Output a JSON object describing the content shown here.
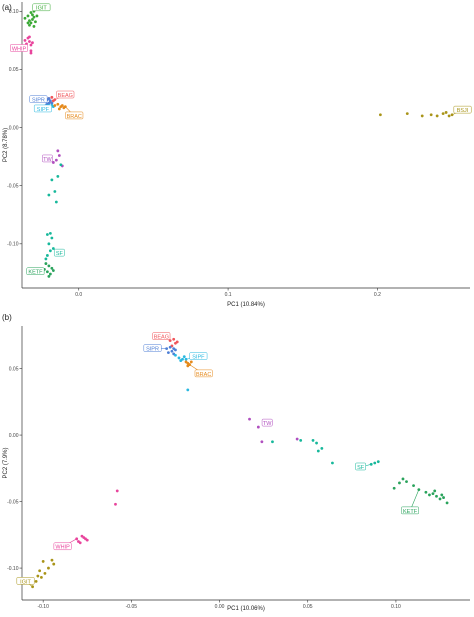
{
  "chart_data": [
    {
      "type": "scatter",
      "panel_label": "(a)",
      "xlabel": "PC1 (10.84%)",
      "ylabel": "PC2 (8.78%)",
      "xlim": [
        -0.038,
        0.262
      ],
      "ylim": [
        -0.138,
        0.108
      ],
      "xticks": [
        0.0,
        0.1,
        0.2
      ],
      "xtick_labels": [
        "0.0",
        "0.1",
        "0.2"
      ],
      "yticks": [
        -0.1,
        -0.05,
        0.0,
        0.05,
        0.1
      ],
      "ytick_labels": [
        "-0.10",
        "-0.05",
        "0.00",
        "0.05",
        "0.10"
      ],
      "grid": false,
      "groups": [
        {
          "name": "IGIT",
          "color": "#3aa935",
          "label_at": [
            -0.025,
            0.103
          ],
          "points": [
            [
              -0.036,
              0.094
            ],
            [
              -0.034,
              0.096
            ],
            [
              -0.033,
              0.092
            ],
            [
              -0.032,
              0.09
            ],
            [
              -0.031,
              0.097
            ],
            [
              -0.03,
              0.095
            ],
            [
              -0.033,
              0.088
            ],
            [
              -0.03,
              0.1
            ],
            [
              -0.029,
              0.091
            ],
            [
              -0.034,
              0.09
            ],
            [
              -0.031,
              0.093
            ],
            [
              -0.028,
              0.096
            ],
            [
              -0.032,
              0.099
            ],
            [
              -0.03,
              0.087
            ]
          ]
        },
        {
          "name": "WHIP",
          "color": "#e8449c",
          "label_at": [
            -0.04,
            0.068
          ],
          "points": [
            [
              -0.036,
              0.075
            ],
            [
              -0.035,
              0.072
            ],
            [
              -0.033,
              0.074
            ],
            [
              -0.034,
              0.077
            ],
            [
              -0.032,
              0.071
            ],
            [
              -0.033,
              0.078
            ],
            [
              -0.036,
              0.07
            ],
            [
              -0.031,
              0.073
            ],
            [
              -0.032,
              0.064
            ],
            [
              -0.032,
              0.066
            ]
          ]
        },
        {
          "name": "BEAG",
          "color": "#f0555a",
          "label_at": [
            -0.009,
            0.028
          ],
          "points": [
            [
              -0.02,
              0.025
            ],
            [
              -0.018,
              0.026
            ],
            [
              -0.017,
              0.023
            ],
            [
              -0.019,
              0.022
            ],
            [
              -0.016,
              0.024
            ]
          ]
        },
        {
          "name": "SIPR",
          "color": "#4e7fd6",
          "label_at": [
            -0.027,
            0.024
          ],
          "points": [
            [
              -0.022,
              0.022
            ],
            [
              -0.021,
              0.024
            ],
            [
              -0.02,
              0.021
            ],
            [
              -0.019,
              0.023
            ],
            [
              -0.021,
              0.02
            ],
            [
              -0.018,
              0.021
            ],
            [
              -0.02,
              0.025
            ],
            [
              -0.022,
              0.019
            ]
          ]
        },
        {
          "name": "SIPF",
          "color": "#29b8e0",
          "label_at": [
            -0.024,
            0.016
          ],
          "points": [
            [
              -0.021,
              0.018
            ],
            [
              -0.02,
              0.019
            ],
            [
              -0.019,
              0.017
            ],
            [
              -0.018,
              0.019
            ],
            [
              -0.017,
              0.018
            ],
            [
              -0.02,
              0.016
            ]
          ]
        },
        {
          "name": "BRAC",
          "color": "#e58a1c",
          "label_at": [
            -0.003,
            0.01
          ],
          "points": [
            [
              -0.016,
              0.019
            ],
            [
              -0.014,
              0.02
            ],
            [
              -0.012,
              0.018
            ],
            [
              -0.01,
              0.017
            ],
            [
              -0.011,
              0.019
            ],
            [
              -0.013,
              0.016
            ],
            [
              -0.009,
              0.018
            ]
          ]
        },
        {
          "name": "BSJI",
          "color": "#a99418",
          "label_at": [
            0.257,
            0.015
          ],
          "points": [
            [
              0.202,
              0.011
            ],
            [
              0.22,
              0.012
            ],
            [
              0.23,
              0.01
            ],
            [
              0.236,
              0.011
            ],
            [
              0.24,
              0.01
            ],
            [
              0.244,
              0.012
            ],
            [
              0.248,
              0.01
            ],
            [
              0.25,
              0.011
            ],
            [
              0.246,
              0.013
            ]
          ]
        },
        {
          "name": "TW",
          "color": "#b04fbf",
          "label_at": [
            -0.021,
            -0.027
          ],
          "points": [
            [
              -0.014,
              -0.02
            ],
            [
              -0.013,
              -0.024
            ],
            [
              -0.017,
              -0.03
            ],
            [
              -0.011,
              -0.033
            ],
            [
              -0.015,
              -0.028
            ]
          ]
        },
        {
          "name": "SF",
          "color": "#17b89b",
          "label_at": [
            -0.013,
            -0.108
          ],
          "points": [
            [
              -0.012,
              -0.032
            ],
            [
              -0.018,
              -0.045
            ],
            [
              -0.014,
              -0.042
            ],
            [
              -0.02,
              -0.058
            ],
            [
              -0.016,
              -0.055
            ],
            [
              -0.015,
              -0.064
            ],
            [
              -0.019,
              -0.091
            ],
            [
              -0.021,
              -0.092
            ],
            [
              -0.018,
              -0.095
            ],
            [
              -0.02,
              -0.1
            ],
            [
              -0.017,
              -0.104
            ],
            [
              -0.019,
              -0.106
            ],
            [
              -0.021,
              -0.11
            ],
            [
              -0.022,
              -0.113
            ]
          ]
        },
        {
          "name": "KETF",
          "color": "#2aa35c",
          "label_at": [
            -0.029,
            -0.124
          ],
          "points": [
            [
              -0.022,
              -0.117
            ],
            [
              -0.02,
              -0.119
            ],
            [
              -0.018,
              -0.121
            ],
            [
              -0.021,
              -0.124
            ],
            [
              -0.019,
              -0.126
            ],
            [
              -0.017,
              -0.123
            ],
            [
              -0.023,
              -0.122
            ],
            [
              -0.02,
              -0.128
            ]
          ]
        }
      ]
    },
    {
      "type": "scatter",
      "panel_label": "(b)",
      "xlabel": "PC1 (10.06%)",
      "ylabel": "PC2 (7.9%)",
      "xlim": [
        -0.112,
        0.142
      ],
      "ylim": [
        -0.124,
        0.082
      ],
      "xticks": [
        -0.1,
        -0.05,
        0.0,
        0.05,
        0.1
      ],
      "xtick_labels": [
        "-0.10",
        "-0.05",
        "0.00",
        "0.05",
        "0.10"
      ],
      "yticks": [
        -0.1,
        -0.05,
        0.0,
        0.05
      ],
      "ytick_labels": [
        "-0.10",
        "-0.05",
        "0.00",
        "0.05"
      ],
      "grid": false,
      "groups": [
        {
          "name": "BEAG",
          "color": "#f0555a",
          "label_at": [
            -0.033,
            0.074
          ],
          "points": [
            [
              -0.028,
              0.071
            ],
            [
              -0.026,
              0.072
            ],
            [
              -0.025,
              0.069
            ],
            [
              -0.027,
              0.067
            ],
            [
              -0.024,
              0.07
            ]
          ]
        },
        {
          "name": "SIPR",
          "color": "#4e7fd6",
          "label_at": [
            -0.038,
            0.065
          ],
          "points": [
            [
              -0.03,
              0.065
            ],
            [
              -0.028,
              0.066
            ],
            [
              -0.027,
              0.063
            ],
            [
              -0.026,
              0.065
            ],
            [
              -0.029,
              0.062
            ],
            [
              -0.025,
              0.064
            ],
            [
              -0.026,
              0.061
            ]
          ]
        },
        {
          "name": "SIPF",
          "color": "#29b8e0",
          "label_at": [
            -0.012,
            0.059
          ],
          "points": [
            [
              -0.025,
              0.06
            ],
            [
              -0.023,
              0.058
            ],
            [
              -0.021,
              0.057
            ],
            [
              -0.02,
              0.059
            ],
            [
              -0.022,
              0.056
            ],
            [
              -0.019,
              0.057
            ],
            [
              -0.018,
              0.034
            ]
          ]
        },
        {
          "name": "BRAC",
          "color": "#e58a1c",
          "label_at": [
            -0.009,
            0.046
          ],
          "points": [
            [
              -0.019,
              0.055
            ],
            [
              -0.018,
              0.054
            ],
            [
              -0.017,
              0.053
            ],
            [
              -0.016,
              0.055
            ],
            [
              -0.018,
              0.052
            ]
          ]
        },
        {
          "name": "TW",
          "color": "#b04fbf",
          "label_at": [
            0.027,
            0.009
          ],
          "points": [
            [
              0.017,
              0.012
            ],
            [
              0.022,
              0.006
            ],
            [
              0.028,
              0.008
            ],
            [
              0.044,
              -0.003
            ],
            [
              0.024,
              -0.005
            ]
          ]
        },
        {
          "name": "SF",
          "color": "#17b89b",
          "label_at": [
            0.08,
            -0.024
          ],
          "points": [
            [
              0.03,
              -0.005
            ],
            [
              0.046,
              -0.004
            ],
            [
              0.053,
              -0.004
            ],
            [
              0.055,
              -0.006
            ],
            [
              0.058,
              -0.01
            ],
            [
              0.064,
              -0.021
            ],
            [
              0.056,
              -0.012
            ],
            [
              0.088,
              -0.021
            ],
            [
              0.086,
              -0.022
            ],
            [
              0.09,
              -0.02
            ]
          ]
        },
        {
          "name": "KETF",
          "color": "#2aa35c",
          "label_at": [
            0.108,
            -0.057
          ],
          "points": [
            [
              0.104,
              -0.033
            ],
            [
              0.106,
              -0.035
            ],
            [
              0.102,
              -0.036
            ],
            [
              0.11,
              -0.038
            ],
            [
              0.113,
              -0.041
            ],
            [
              0.117,
              -0.043
            ],
            [
              0.119,
              -0.045
            ],
            [
              0.121,
              -0.044
            ],
            [
              0.123,
              -0.046
            ],
            [
              0.125,
              -0.048
            ],
            [
              0.127,
              -0.047
            ],
            [
              0.129,
              -0.051
            ],
            [
              0.099,
              -0.04
            ],
            [
              0.122,
              -0.042
            ],
            [
              0.126,
              -0.045
            ]
          ]
        },
        {
          "name": "WHIP",
          "color": "#e8449c",
          "label_at": [
            -0.089,
            -0.084
          ],
          "points": [
            [
              -0.075,
              -0.079
            ],
            [
              -0.077,
              -0.077
            ],
            [
              -0.079,
              -0.081
            ],
            [
              -0.081,
              -0.078
            ],
            [
              -0.078,
              -0.076
            ],
            [
              -0.058,
              -0.042
            ],
            [
              -0.059,
              -0.052
            ],
            [
              -0.08,
              -0.08
            ],
            [
              -0.076,
              -0.078
            ]
          ]
        },
        {
          "name": "IGIT",
          "color": "#a99418",
          "label_at": [
            -0.11,
            -0.11
          ],
          "points": [
            [
              -0.106,
              -0.114
            ],
            [
              -0.104,
              -0.11
            ],
            [
              -0.101,
              -0.107
            ],
            [
              -0.099,
              -0.104
            ],
            [
              -0.097,
              -0.1
            ],
            [
              -0.095,
              -0.094
            ],
            [
              -0.094,
              -0.097
            ],
            [
              -0.102,
              -0.102
            ],
            [
              -0.1,
              -0.095
            ],
            [
              -0.103,
              -0.106
            ]
          ]
        }
      ]
    }
  ]
}
